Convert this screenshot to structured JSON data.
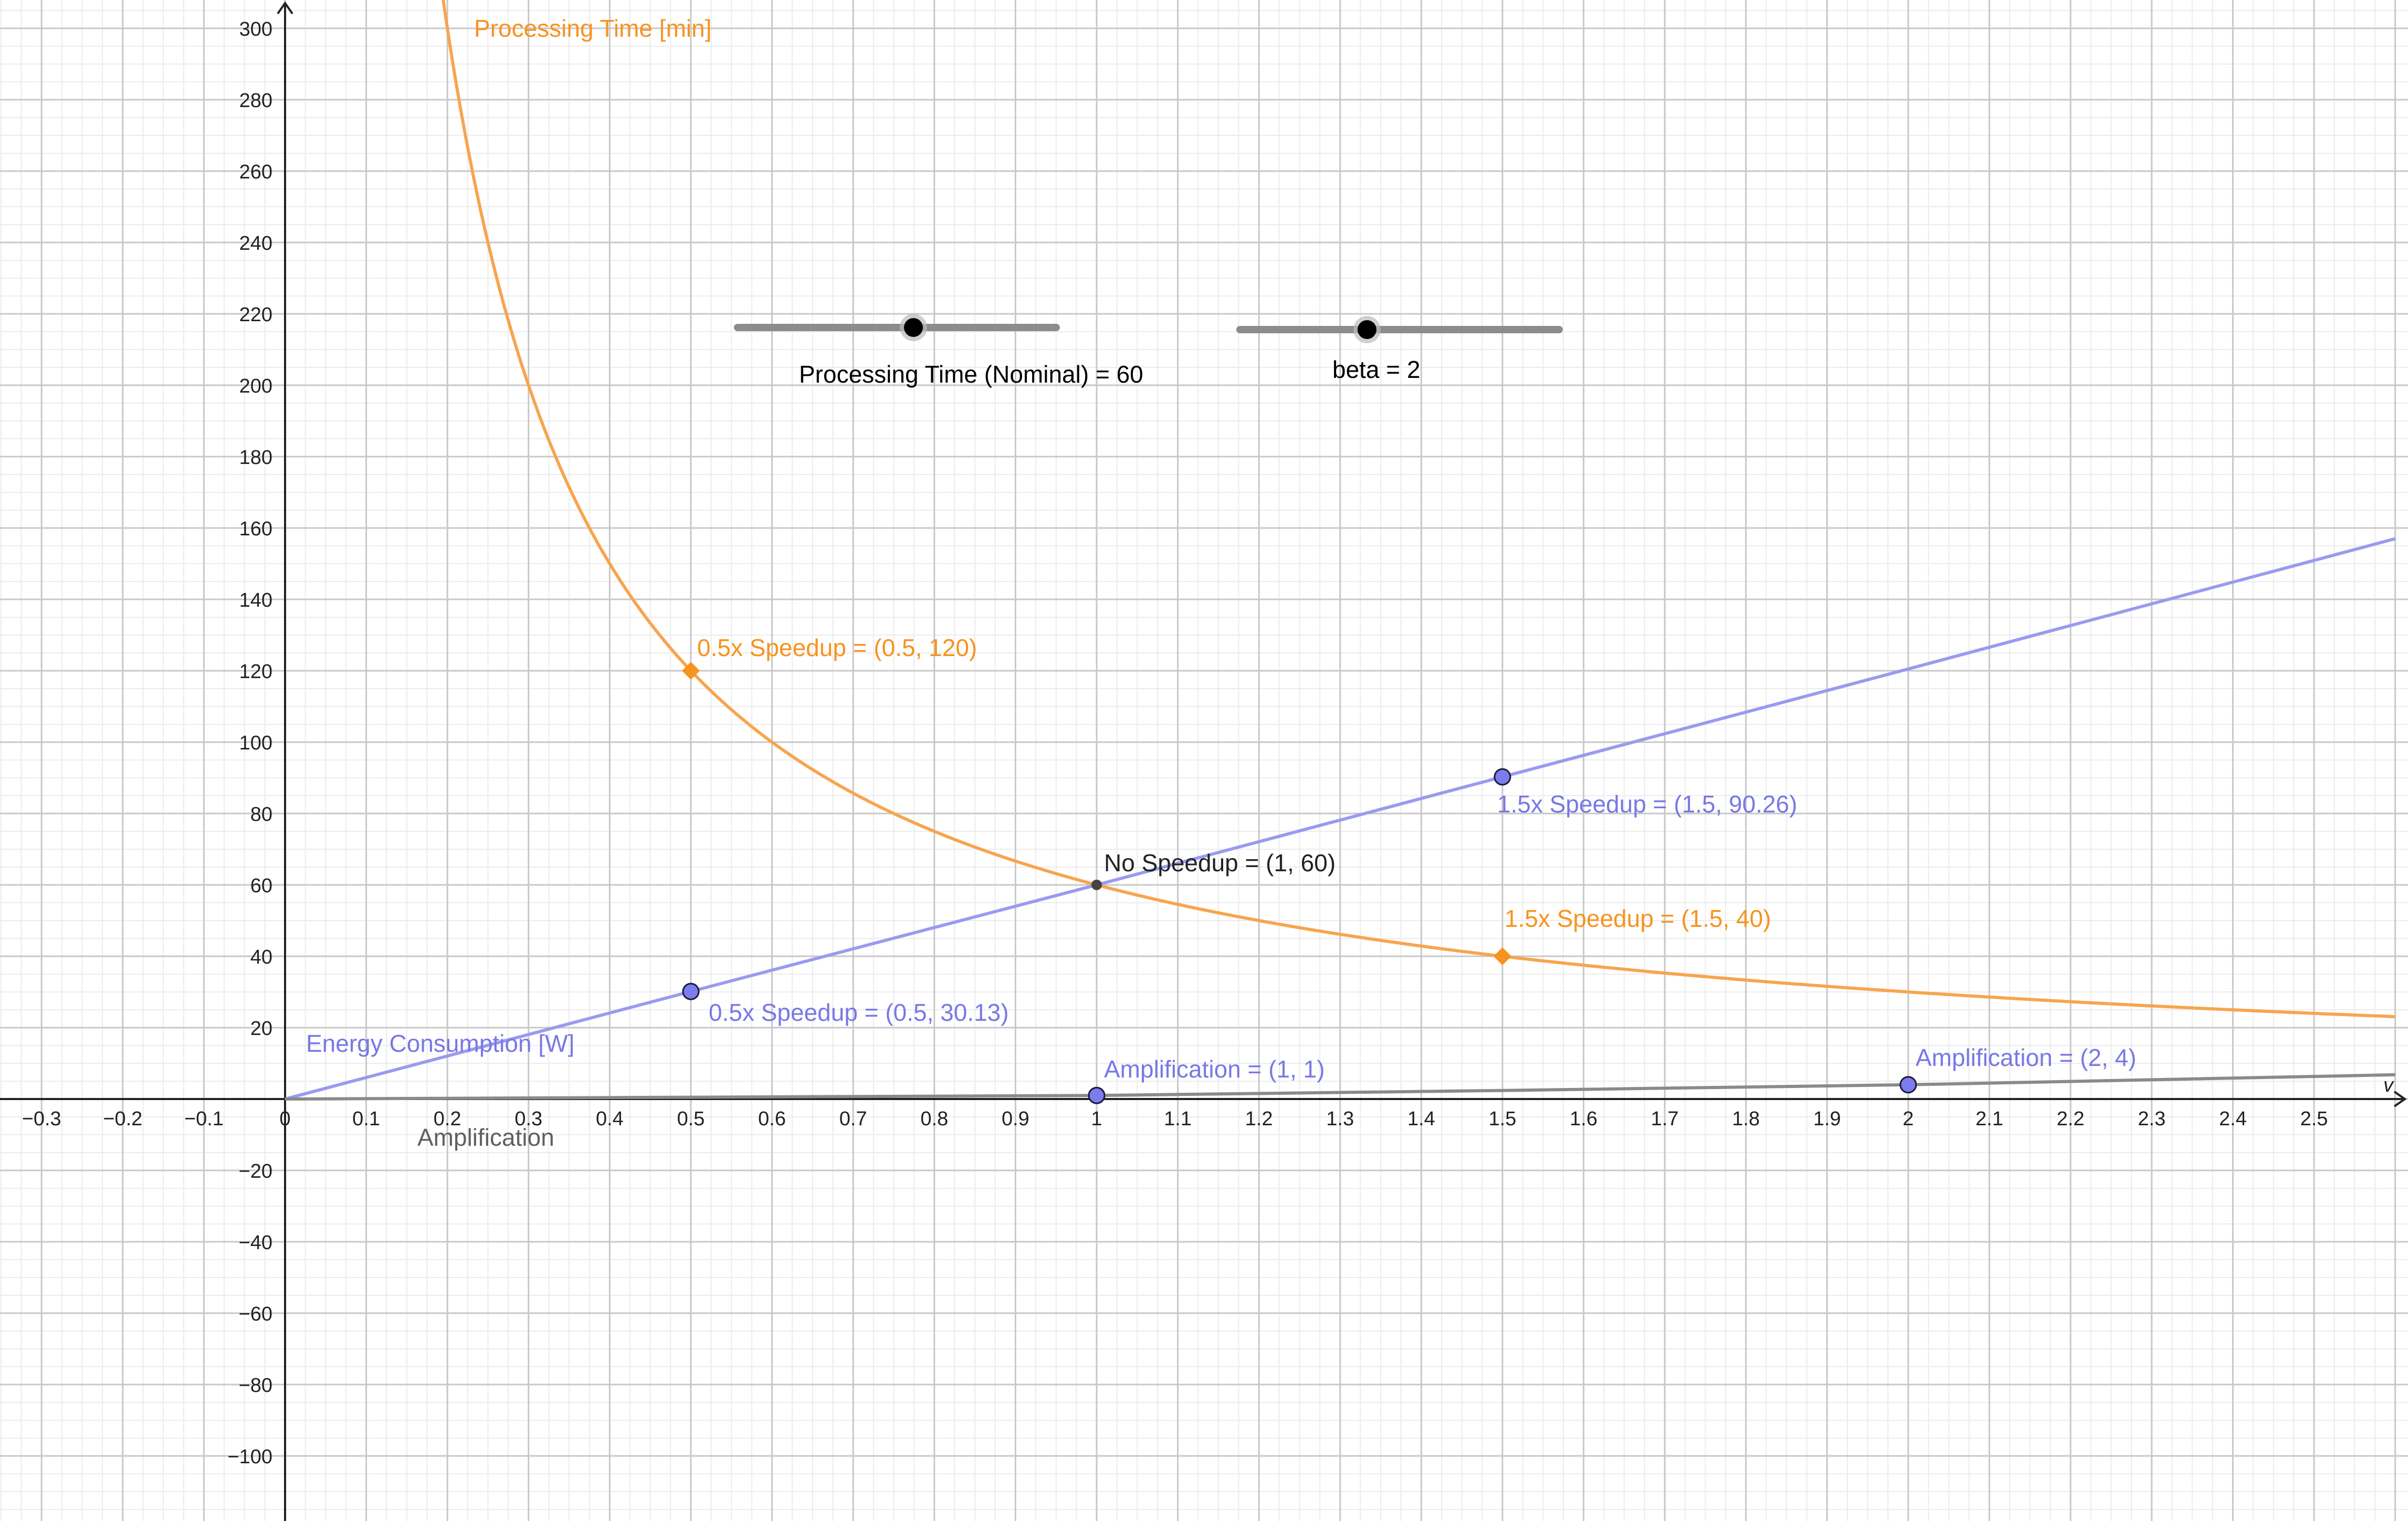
{
  "colors": {
    "processing_time": "#f7a54f",
    "processing_time_point": "#f7931e",
    "energy": "#9a9af0",
    "energy_label": "#7878e6",
    "energy_point": "#7c7cee",
    "amplification": "#8a8a8a",
    "amplification_label": "#606060",
    "no_speedup_point": "#444444",
    "grid_major": "#c8c8c8",
    "grid_minor": "#ececec",
    "axis": "#222222",
    "slider_track": "#8c8c8c",
    "slider_knob": "#000000"
  },
  "sliders": [
    {
      "name": "Processing Time (Nominal)",
      "value": 60,
      "label": "Processing Time (Nominal) = 60"
    },
    {
      "name": "beta",
      "value": 2,
      "label": "beta = 2"
    }
  ],
  "chart_data": {
    "type": "line",
    "xlabel": "v",
    "ylabel": "",
    "xlim": [
      -0.35,
      2.6
    ],
    "ylim": [
      -117,
      309
    ],
    "grid": true,
    "x_ticks": [
      -0.3,
      -0.2,
      -0.1,
      0,
      0.1,
      0.2,
      0.3,
      0.4,
      0.5,
      0.6,
      0.7,
      0.8,
      0.9,
      1,
      1.1,
      1.2,
      1.3,
      1.4,
      1.5,
      1.6,
      1.7,
      1.8,
      1.9,
      2,
      2.1,
      2.2,
      2.3,
      2.4,
      2.5
    ],
    "x_tick_labels": [
      "−0.3",
      "−0.2",
      "−0.1",
      "0",
      "0.1",
      "0.2",
      "0.3",
      "0.4",
      "0.5",
      "0.6",
      "0.7",
      "0.8",
      "0.9",
      "1",
      "1.1",
      "1.2",
      "1.3",
      "1.4",
      "1.5",
      "1.6",
      "1.7",
      "1.8",
      "1.9",
      "2",
      "2.1",
      "2.2",
      "2.3",
      "2.4",
      "2.5"
    ],
    "y_ticks": [
      -100,
      -80,
      -60,
      -40,
      -20,
      20,
      40,
      60,
      80,
      100,
      120,
      140,
      160,
      180,
      200,
      220,
      240,
      260,
      280,
      300
    ],
    "y_tick_labels": [
      "−100",
      "−80",
      "−60",
      "−40",
      "−20",
      "20",
      "40",
      "60",
      "80",
      "100",
      "120",
      "140",
      "160",
      "180",
      "200",
      "220",
      "240",
      "260",
      "280",
      "300"
    ],
    "series": [
      {
        "name": "Processing Time [min]",
        "color": "#f7a54f",
        "x": [
          0.19,
          0.2,
          0.22,
          0.25,
          0.3,
          0.35,
          0.4,
          0.5,
          0.6,
          0.7,
          0.8,
          0.9,
          1,
          1.2,
          1.4,
          1.5,
          1.6,
          1.8,
          2,
          2.2,
          2.4,
          2.6
        ],
        "values": [
          315.79,
          300,
          272.73,
          240,
          200,
          171.43,
          150,
          120,
          100,
          85.71,
          75,
          66.67,
          60,
          50,
          42.86,
          40,
          37.5,
          33.33,
          30,
          27.27,
          25,
          23.08
        ]
      },
      {
        "name": "Energy Consumption [W]",
        "color": "#9a9af0",
        "x": [
          0,
          0.5,
          1,
          1.5,
          2,
          2.6
        ],
        "values": [
          0,
          30.13,
          60,
          90.26,
          120.5,
          157
        ]
      },
      {
        "name": "Amplification",
        "color": "#8a8a8a",
        "x": [
          0,
          0.5,
          1,
          1.5,
          2,
          2.6
        ],
        "values": [
          0,
          0.5,
          1,
          2.4,
          4,
          6.8
        ]
      }
    ],
    "points": [
      {
        "label": "0.5x Speedup = (0.5, 120)",
        "x": 0.5,
        "y": 120,
        "series": "Processing Time [min]",
        "marker": "diamond"
      },
      {
        "label": "1.5x Speedup = (1.5, 40)",
        "x": 1.5,
        "y": 40,
        "series": "Processing Time [min]",
        "marker": "diamond"
      },
      {
        "label": "0.5x Speedup = (0.5, 30.13)",
        "x": 0.5,
        "y": 30.13,
        "series": "Energy Consumption [W]",
        "marker": "circle"
      },
      {
        "label": "1.5x Speedup = (1.5, 90.26)",
        "x": 1.5,
        "y": 90.26,
        "series": "Energy Consumption [W]",
        "marker": "circle"
      },
      {
        "label": "No Speedup = (1, 60)",
        "x": 1,
        "y": 60,
        "series": "",
        "marker": "dot"
      },
      {
        "label": "Amplification = (1, 1)",
        "x": 1,
        "y": 1,
        "series": "Amplification",
        "marker": "circle"
      },
      {
        "label": "Amplification = (2, 4)",
        "x": 2,
        "y": 4,
        "series": "Amplification",
        "marker": "circle"
      }
    ]
  }
}
